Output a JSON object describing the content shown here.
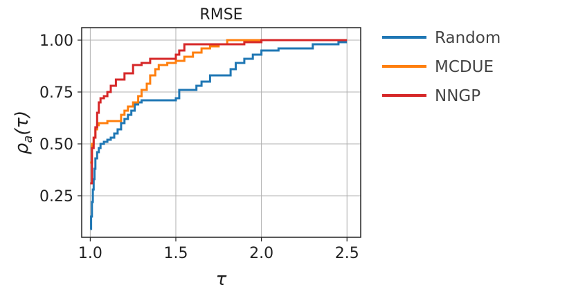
{
  "chart_data": {
    "type": "line",
    "title": "RMSE",
    "xlabel": "τ",
    "ylabel": "ρ_a(τ)",
    "xlim": [
      0.95,
      2.58
    ],
    "ylim": [
      0.05,
      1.06
    ],
    "xticks": [
      1.0,
      1.5,
      2.0,
      2.5
    ],
    "xtick_labels": [
      "1.0",
      "1.5",
      "2.0",
      "2.5"
    ],
    "yticks": [
      0.25,
      0.5,
      0.75,
      1.0
    ],
    "ytick_labels": [
      "0.25",
      "0.50",
      "0.75",
      "1.00"
    ],
    "grid": true,
    "legend_position": "right-outside",
    "series": [
      {
        "name": "Random",
        "color": "#1f77b4",
        "x": [
          1.0,
          1.005,
          1.01,
          1.015,
          1.02,
          1.025,
          1.03,
          1.04,
          1.05,
          1.06,
          1.08,
          1.1,
          1.12,
          1.14,
          1.16,
          1.18,
          1.2,
          1.22,
          1.24,
          1.26,
          1.28,
          1.3,
          1.35,
          1.4,
          1.45,
          1.5,
          1.52,
          1.55,
          1.6,
          1.62,
          1.65,
          1.7,
          1.75,
          1.8,
          1.82,
          1.85,
          1.9,
          1.95,
          2.0,
          2.05,
          2.1,
          2.2,
          2.3,
          2.4,
          2.45,
          2.5
        ],
        "y": [
          0.09,
          0.15,
          0.22,
          0.28,
          0.33,
          0.38,
          0.43,
          0.46,
          0.48,
          0.5,
          0.51,
          0.52,
          0.53,
          0.55,
          0.57,
          0.6,
          0.62,
          0.64,
          0.66,
          0.69,
          0.7,
          0.71,
          0.71,
          0.71,
          0.71,
          0.72,
          0.76,
          0.76,
          0.76,
          0.78,
          0.8,
          0.83,
          0.83,
          0.83,
          0.86,
          0.89,
          0.91,
          0.93,
          0.95,
          0.95,
          0.96,
          0.96,
          0.98,
          0.98,
          0.99,
          0.99
        ]
      },
      {
        "name": "MCDUE",
        "color": "#ff7f0e",
        "x": [
          1.0,
          1.01,
          1.02,
          1.03,
          1.04,
          1.05,
          1.07,
          1.1,
          1.15,
          1.18,
          1.2,
          1.22,
          1.25,
          1.28,
          1.3,
          1.33,
          1.35,
          1.38,
          1.4,
          1.45,
          1.5,
          1.55,
          1.6,
          1.65,
          1.7,
          1.75,
          1.8,
          1.9,
          2.0,
          2.5
        ],
        "y": [
          0.41,
          0.5,
          0.53,
          0.57,
          0.59,
          0.6,
          0.6,
          0.61,
          0.61,
          0.64,
          0.66,
          0.68,
          0.7,
          0.73,
          0.76,
          0.79,
          0.83,
          0.86,
          0.88,
          0.89,
          0.9,
          0.92,
          0.94,
          0.96,
          0.97,
          0.98,
          1.0,
          1.0,
          1.0,
          1.0
        ]
      },
      {
        "name": "NNGP",
        "color": "#d62728",
        "x": [
          1.0,
          1.01,
          1.02,
          1.03,
          1.04,
          1.05,
          1.06,
          1.08,
          1.1,
          1.12,
          1.15,
          1.2,
          1.25,
          1.3,
          1.35,
          1.4,
          1.45,
          1.5,
          1.52,
          1.55,
          1.6,
          1.7,
          1.8,
          1.9,
          2.0,
          2.5
        ],
        "y": [
          0.31,
          0.48,
          0.53,
          0.58,
          0.65,
          0.7,
          0.72,
          0.73,
          0.75,
          0.78,
          0.81,
          0.84,
          0.88,
          0.89,
          0.91,
          0.91,
          0.91,
          0.93,
          0.95,
          0.98,
          0.98,
          0.98,
          0.98,
          0.99,
          1.0,
          1.0
        ]
      }
    ]
  }
}
